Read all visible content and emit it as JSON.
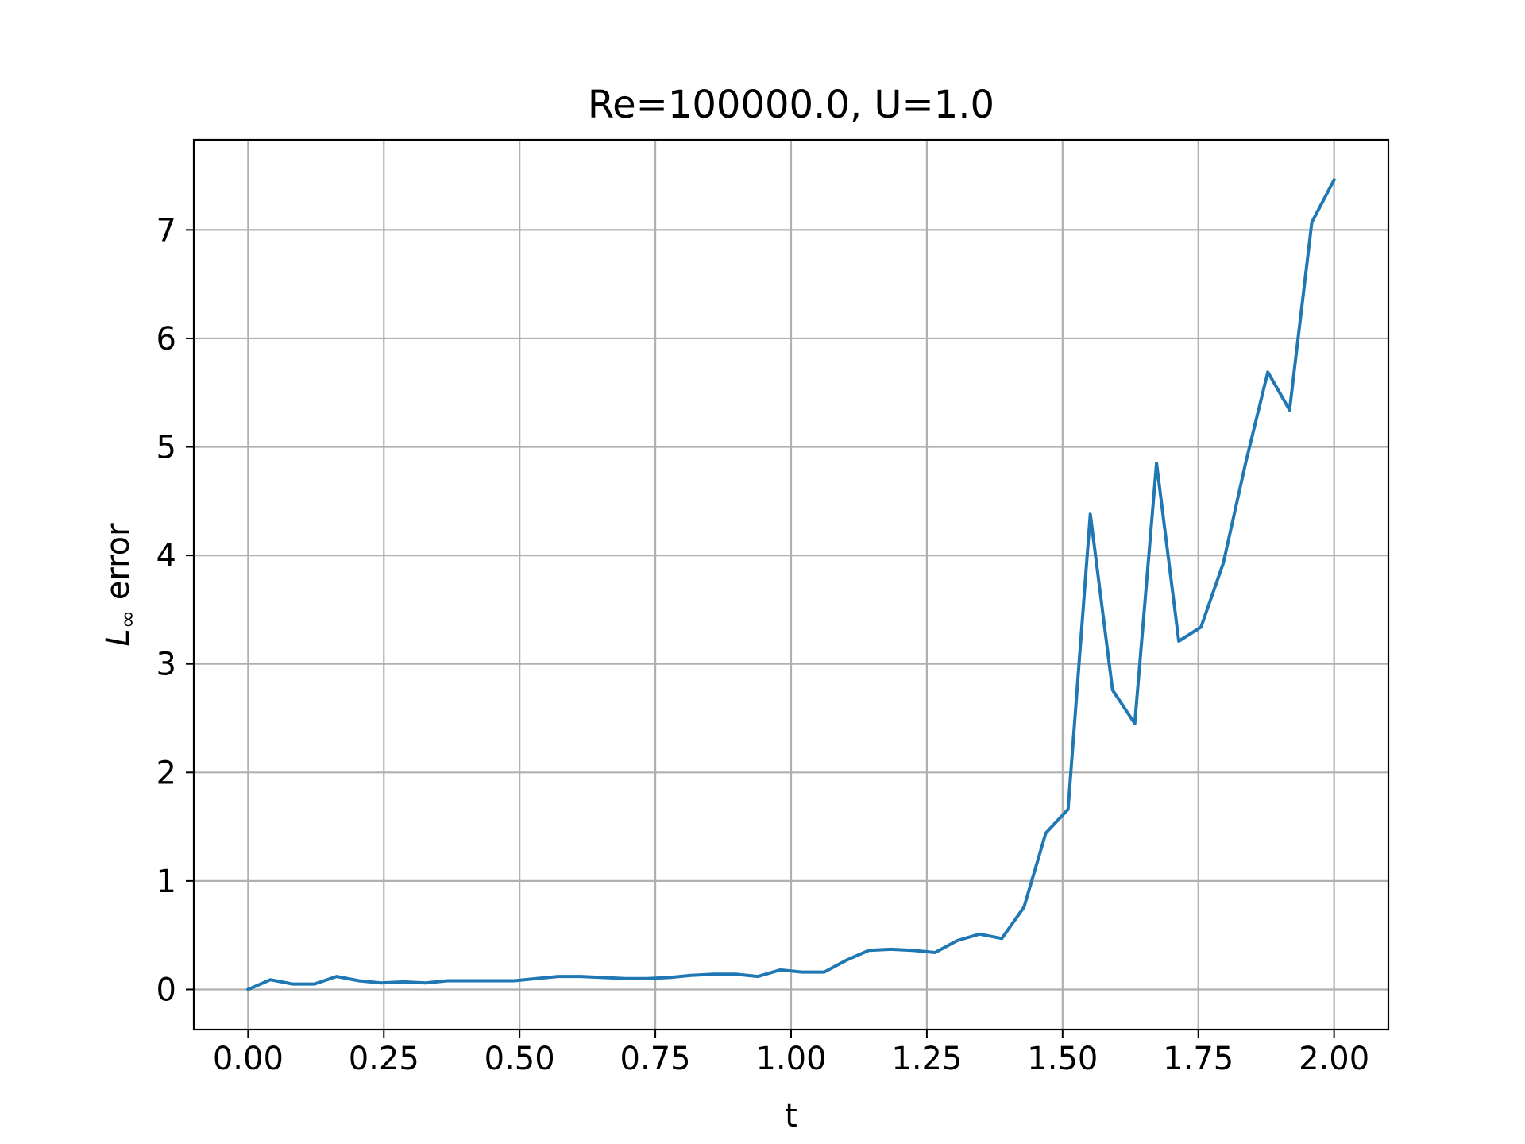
{
  "chart_data": {
    "type": "line",
    "title": "Re=100000.0, U=1.0",
    "xlabel": "t",
    "ylabel": "L∞ error",
    "ylabel_parts": {
      "symbol": "L",
      "subscript": "∞",
      "rest": " error"
    },
    "xlim": [
      -0.1,
      2.1
    ],
    "ylim": [
      -0.37,
      7.83
    ],
    "xticks": [
      0.0,
      0.25,
      0.5,
      0.75,
      1.0,
      1.25,
      1.5,
      1.75,
      2.0
    ],
    "xtick_labels": [
      "0.00",
      "0.25",
      "0.50",
      "0.75",
      "1.00",
      "1.25",
      "1.50",
      "1.75",
      "2.00"
    ],
    "yticks": [
      0,
      1,
      2,
      3,
      4,
      5,
      6,
      7
    ],
    "ytick_labels": [
      "0",
      "1",
      "2",
      "3",
      "4",
      "5",
      "6",
      "7"
    ],
    "grid": true,
    "series_color": "#1f77b4",
    "series": [
      {
        "x": [
          0.0,
          0.041,
          0.082,
          0.122,
          0.163,
          0.204,
          0.245,
          0.286,
          0.327,
          0.367,
          0.408,
          0.449,
          0.49,
          0.531,
          0.571,
          0.612,
          0.653,
          0.694,
          0.735,
          0.776,
          0.816,
          0.857,
          0.898,
          0.939,
          0.98,
          1.02,
          1.061,
          1.102,
          1.143,
          1.184,
          1.224,
          1.265,
          1.306,
          1.347,
          1.388,
          1.429,
          1.469,
          1.51,
          1.551,
          1.592,
          1.633,
          1.673,
          1.714,
          1.755,
          1.796,
          1.837,
          1.878,
          1.918,
          1.959,
          2.0
        ],
        "y": [
          0.0,
          0.09,
          0.05,
          0.05,
          0.12,
          0.08,
          0.06,
          0.07,
          0.06,
          0.08,
          0.08,
          0.08,
          0.08,
          0.1,
          0.12,
          0.12,
          0.11,
          0.1,
          0.1,
          0.11,
          0.13,
          0.14,
          0.14,
          0.12,
          0.18,
          0.16,
          0.16,
          0.27,
          0.36,
          0.37,
          0.36,
          0.34,
          0.45,
          0.51,
          0.47,
          0.76,
          1.44,
          1.66,
          4.38,
          2.76,
          2.45,
          4.85,
          3.21,
          3.34,
          3.93,
          4.85,
          5.69,
          5.34,
          7.07,
          7.46
        ]
      }
    ]
  }
}
